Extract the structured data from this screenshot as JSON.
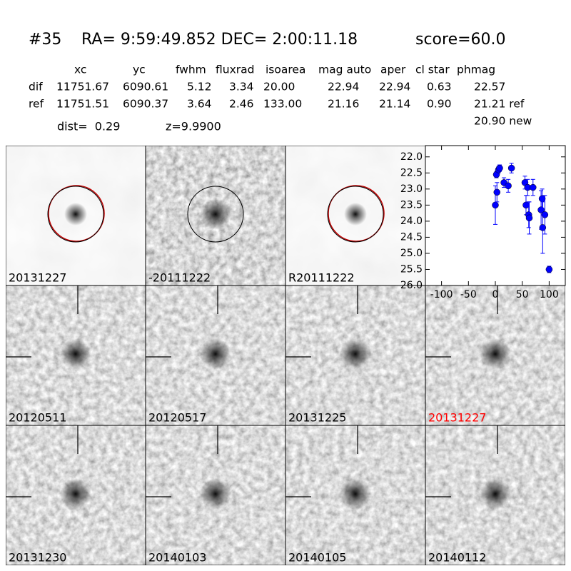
{
  "header": {
    "id": "#35",
    "coords": "RA= 9:59:49.852 DEC= 2:00:11.18",
    "score": "score=60.0"
  },
  "table": {
    "columns": [
      "xc",
      "yc",
      "fwhm",
      "fluxrad",
      "isoarea",
      "mag auto",
      "aper",
      "cl star",
      "phmag"
    ],
    "rows": [
      [
        "dif",
        "11751.67",
        "6090.61",
        "5.12",
        "3.34",
        "20.00",
        "22.94",
        "22.94",
        "0.63",
        "22.57"
      ],
      [
        "ref",
        "11751.51",
        "6090.37",
        "3.64",
        "2.46",
        "133.00",
        "21.16",
        "21.14",
        "0.90",
        "21.21 ref"
      ]
    ],
    "extra": "20.90 new",
    "dist": "dist=  0.29",
    "z": "z=9.9900"
  },
  "stamps": [
    [
      {
        "label": "20131227"
      },
      {
        "label": "-20111222"
      },
      {
        "label": "R20111222"
      }
    ],
    [
      {
        "label": "20120511"
      },
      {
        "label": "20120517"
      },
      {
        "label": "20131225"
      },
      {
        "label": "20131227",
        "color": "#ff0000"
      }
    ],
    [
      {
        "label": "20131230"
      },
      {
        "label": "20140103"
      },
      {
        "label": "20140105"
      },
      {
        "label": "20140112"
      }
    ]
  ],
  "chart_data": {
    "type": "errorbar",
    "color": "#0000ff",
    "x": [
      0,
      2,
      3,
      6,
      8,
      16,
      24,
      30,
      55,
      57,
      60,
      62,
      63,
      70,
      85,
      87,
      88,
      92,
      100
    ],
    "values": [
      23.5,
      22.55,
      23.1,
      22.4,
      22.35,
      22.8,
      22.9,
      22.35,
      22.8,
      23.5,
      22.95,
      23.8,
      23.9,
      22.95,
      23.65,
      23.3,
      24.2,
      23.8,
      25.5
    ],
    "errors": [
      0.6,
      0.1,
      0.3,
      0.1,
      0.1,
      0.15,
      0.2,
      0.15,
      0.2,
      0.3,
      0.25,
      0.4,
      0.5,
      0.25,
      0.6,
      0.3,
      0.8,
      0.6,
      0.1
    ],
    "xlim": [
      -130,
      130
    ],
    "ylim": [
      21.65,
      26
    ],
    "y_inverted": true,
    "xticks": [
      -100,
      -50,
      0,
      50,
      100
    ],
    "yticks": [
      {
        "value": 22,
        "label": "22.0"
      },
      {
        "value": 22.5,
        "label": "22.5"
      },
      {
        "value": 23,
        "label": "23.0"
      },
      {
        "value": 23.5,
        "label": "23.5"
      },
      {
        "value": 24,
        "label": "24.0"
      },
      {
        "value": 24.5,
        "label": "24.5"
      },
      {
        "value": 25,
        "label": "25.0"
      },
      {
        "value": 25.5,
        "label": "25.5"
      },
      {
        "value": 26,
        "label": "26.0"
      }
    ]
  }
}
